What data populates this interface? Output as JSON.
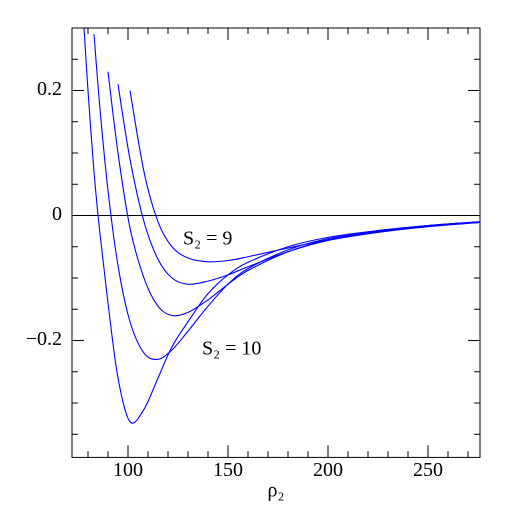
{
  "chart_data": {
    "type": "line",
    "x_label": "ρ₂",
    "x": [
      78,
      80,
      83,
      86,
      90,
      95,
      101,
      108,
      115,
      122,
      130,
      140,
      150,
      160,
      180,
      200,
      225,
      250,
      276
    ],
    "series": [
      {
        "color": "#0000ff",
        "values": [
          null,
          null,
          null,
          null,
          null,
          null,
          0.2,
          0.07,
          -0.01,
          -0.05,
          -0.068,
          -0.074,
          -0.072,
          -0.066,
          -0.052,
          -0.039,
          -0.027,
          -0.018,
          -0.011
        ]
      },
      {
        "color": "#0000ff",
        "values": [
          null,
          null,
          null,
          null,
          null,
          0.21,
          0.09,
          -0.01,
          -0.07,
          -0.1,
          -0.11,
          -0.105,
          -0.095,
          -0.082,
          -0.058,
          -0.04,
          -0.027,
          -0.017,
          -0.011
        ]
      },
      {
        "color": "#0000ff",
        "values": [
          null,
          null,
          null,
          null,
          0.23,
          0.1,
          -0.02,
          -0.1,
          -0.145,
          -0.16,
          -0.155,
          -0.135,
          -0.11,
          -0.088,
          -0.058,
          -0.039,
          -0.026,
          -0.017,
          -0.01
        ]
      },
      {
        "color": "#0000ff",
        "values": [
          null,
          null,
          0.29,
          0.17,
          0.04,
          -0.08,
          -0.17,
          -0.22,
          -0.23,
          -0.215,
          -0.185,
          -0.145,
          -0.11,
          -0.085,
          -0.055,
          -0.037,
          -0.025,
          -0.016,
          -0.01
        ]
      },
      {
        "color": "#0000ff",
        "values": [
          0.3,
          0.2,
          0.07,
          -0.03,
          -0.14,
          -0.26,
          -0.33,
          -0.31,
          -0.26,
          -0.21,
          -0.17,
          -0.125,
          -0.095,
          -0.075,
          -0.05,
          -0.035,
          -0.024,
          -0.016,
          -0.01
        ]
      }
    ],
    "annotations": [
      "S₂ = 9",
      "S₂ = 10"
    ],
    "xlim": [
      72,
      276
    ],
    "ylim": [
      -0.387,
      0.3
    ],
    "xticks": [
      100,
      150,
      200,
      250
    ],
    "xminor_ticks": [
      80,
      90,
      110,
      120,
      130,
      140,
      160,
      170,
      180,
      190,
      210,
      220,
      230,
      240,
      260,
      270
    ],
    "yticks": [
      {
        "value": -0.2,
        "label": "−0.2"
      },
      0,
      0.2
    ],
    "yminor_ticks": [
      -0.35,
      -0.3,
      -0.25,
      -0.15,
      -0.1,
      -0.05,
      0.05,
      0.1,
      0.15,
      0.25
    ],
    "zero_line": true
  }
}
